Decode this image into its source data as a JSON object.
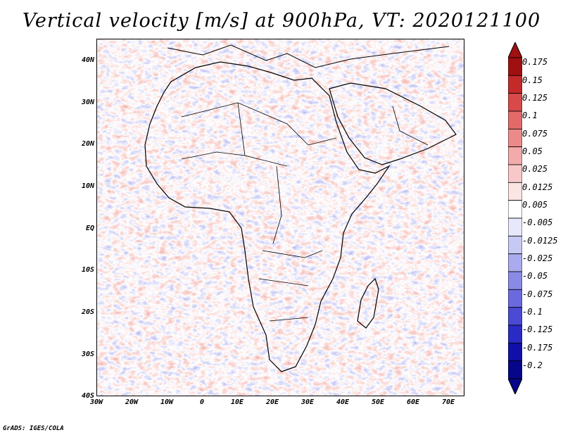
{
  "title": "Vertical velocity [m/s] at 900hPa, VT: 2020121100",
  "footer": "GrADS: IGES/COLA",
  "map": {
    "lat_labels": [
      "40N",
      "30N",
      "20N",
      "10N",
      "EQ",
      "10S",
      "20S",
      "30S",
      "40S"
    ],
    "lon_labels": [
      "30W",
      "20W",
      "10W",
      "0",
      "10E",
      "20E",
      "30E",
      "40E",
      "50E",
      "60E",
      "70E"
    ],
    "lon_range": [
      -30,
      75
    ],
    "lat_range": [
      -40,
      45
    ],
    "field_colors": {
      "positive": "#e05a4a",
      "negative": "#5a5ae0",
      "land": "#ffffff",
      "border": "#000000"
    }
  },
  "colorbar": {
    "labels": [
      "0.175",
      "0.15",
      "0.125",
      "0.1",
      "0.075",
      "0.05",
      "0.025",
      "0.0125",
      "0.005",
      "-0.005",
      "-0.0125",
      "-0.025",
      "-0.05",
      "-0.075",
      "-0.1",
      "-0.125",
      "-0.175",
      "-0.2"
    ],
    "colors": [
      "#a01010",
      "#c42a2a",
      "#d84a4a",
      "#e46a6a",
      "#ec8a8a",
      "#f2aaaa",
      "#f8c8c8",
      "#fce4e4",
      "#ffffff",
      "#e8e8fc",
      "#c8c8f4",
      "#aaaaee",
      "#8a8ae6",
      "#6a6ade",
      "#4a4ad4",
      "#2a2ac4",
      "#1010a8",
      "#06068a"
    ]
  }
}
